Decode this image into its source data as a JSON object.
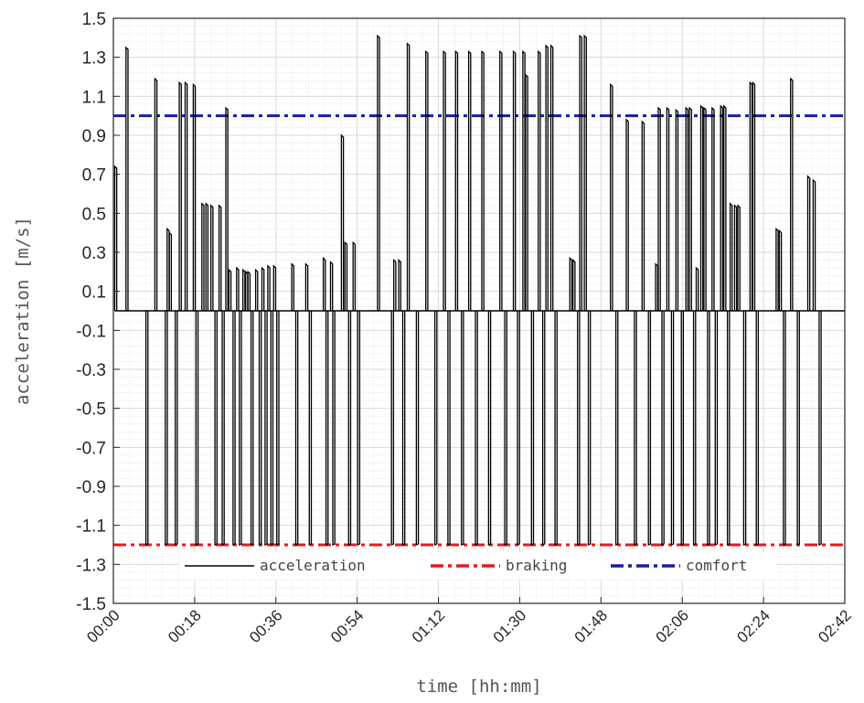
{
  "chart_data": {
    "type": "line",
    "xlabel": "time [hh:mm]",
    "ylabel": "acceleration [m/s]",
    "x_unit": "minutes",
    "xlim": [
      0,
      162
    ],
    "ylim": [
      -1.5,
      1.5
    ],
    "x_ticks": [
      0,
      18,
      36,
      54,
      72,
      90,
      108,
      126,
      144,
      162
    ],
    "x_tick_labels": [
      "00:00",
      "00:18",
      "00:36",
      "00:54",
      "01:12",
      "01:30",
      "01:48",
      "02:06",
      "02:24",
      "02:42"
    ],
    "y_ticks": [
      -1.5,
      -1.3,
      -1.1,
      -0.9,
      -0.7,
      -0.5,
      -0.3,
      -0.1,
      0.1,
      0.3,
      0.5,
      0.7,
      0.9,
      1.1,
      1.3,
      1.5
    ],
    "y_tick_labels": [
      "-1.5",
      "-1.3",
      "-1.1",
      "-0.9",
      "-0.7",
      "-0.5",
      "-0.3",
      "-0.1",
      "0.1",
      "0.3",
      "0.5",
      "0.7",
      "0.9",
      "1.1",
      "1.3",
      "1.5"
    ],
    "grid": true,
    "minor_grid": true,
    "legend_position": "bottom-center",
    "series": [
      {
        "name": "acceleration",
        "color": "#000000",
        "style": "solid",
        "baseline": 0,
        "events": [
          [
            0.3,
            0.74
          ],
          [
            2.8,
            1.35
          ],
          [
            7.2,
            -1.2
          ],
          [
            9.2,
            1.19
          ],
          [
            11.5,
            -1.2
          ],
          [
            11.9,
            0.42
          ],
          [
            12.4,
            0.4
          ],
          [
            13.7,
            -1.2
          ],
          [
            14.6,
            1.17
          ],
          [
            15.9,
            1.17
          ],
          [
            17.7,
            1.16
          ],
          [
            18.3,
            -1.2
          ],
          [
            19.6,
            0.55
          ],
          [
            20.5,
            0.55
          ],
          [
            21.6,
            0.54
          ],
          [
            22.5,
            -1.2
          ],
          [
            23.4,
            0.54
          ],
          [
            24.1,
            -1.2
          ],
          [
            24.9,
            1.04
          ],
          [
            25.6,
            0.21
          ],
          [
            26.5,
            -1.2
          ],
          [
            27.3,
            0.22
          ],
          [
            27.9,
            -1.2
          ],
          [
            28.7,
            0.21
          ],
          [
            29.3,
            0.2
          ],
          [
            29.8,
            0.2
          ],
          [
            30.5,
            -1.2
          ],
          [
            31.5,
            0.21
          ],
          [
            32.3,
            -1.2
          ],
          [
            32.9,
            0.22
          ],
          [
            33.6,
            -1.2
          ],
          [
            34.2,
            0.23
          ],
          [
            34.9,
            -1.2
          ],
          [
            35.5,
            0.23
          ],
          [
            36.2,
            -1.2
          ],
          [
            39.5,
            0.24
          ],
          [
            40.4,
            -1.2
          ],
          [
            42.6,
            0.24
          ],
          [
            43.4,
            -1.2
          ],
          [
            46.5,
            0.27
          ],
          [
            47.1,
            -1.2
          ],
          [
            48.1,
            0.25
          ],
          [
            48.6,
            -1.2
          ],
          [
            50.5,
            0.9
          ],
          [
            51.3,
            0.35
          ],
          [
            52.1,
            -1.2
          ],
          [
            53.1,
            0.35
          ],
          [
            54.1,
            -1.2
          ],
          [
            58.5,
            1.41
          ],
          [
            61.6,
            -1.2
          ],
          [
            62.1,
            0.26
          ],
          [
            63.2,
            0.26
          ],
          [
            64.1,
            -1.2
          ],
          [
            65.1,
            1.37
          ],
          [
            67.1,
            -1.2
          ],
          [
            69.2,
            1.33
          ],
          [
            71.2,
            -1.2
          ],
          [
            73.1,
            1.33
          ],
          [
            74.1,
            -1.2
          ],
          [
            75.8,
            1.33
          ],
          [
            77.1,
            -1.2
          ],
          [
            78.7,
            1.33
          ],
          [
            80.2,
            -1.2
          ],
          [
            81.6,
            1.33
          ],
          [
            83.1,
            -1.2
          ],
          [
            85.6,
            1.33
          ],
          [
            86.7,
            -1.2
          ],
          [
            88.6,
            1.33
          ],
          [
            89.5,
            -1.2
          ],
          [
            90.7,
            1.33
          ],
          [
            91.3,
            1.21
          ],
          [
            92.6,
            -1.2
          ],
          [
            94.1,
            1.33
          ],
          [
            95.1,
            -1.2
          ],
          [
            95.8,
            1.36
          ],
          [
            96.9,
            1.36
          ],
          [
            97.8,
            -1.2
          ],
          [
            101.1,
            0.27
          ],
          [
            101.8,
            0.26
          ],
          [
            102.8,
            -1.2
          ],
          [
            103.3,
            1.41
          ],
          [
            104.3,
            1.41
          ],
          [
            105.2,
            -1.2
          ],
          [
            110.1,
            1.16
          ],
          [
            111.3,
            -1.2
          ],
          [
            113.6,
            0.98
          ],
          [
            115.4,
            -1.2
          ],
          [
            117.1,
            0.97
          ],
          [
            118.5,
            -1.2
          ],
          [
            120.1,
            0.24
          ],
          [
            120.7,
            1.04
          ],
          [
            121.5,
            -1.2
          ],
          [
            122.6,
            1.04
          ],
          [
            123.6,
            -1.2
          ],
          [
            124.6,
            1.03
          ],
          [
            125.8,
            -1.2
          ],
          [
            126.8,
            1.04
          ],
          [
            127.6,
            1.04
          ],
          [
            128.5,
            -1.2
          ],
          [
            129.1,
            0.22
          ],
          [
            130.1,
            1.05
          ],
          [
            130.8,
            1.04
          ],
          [
            131.6,
            -1.2
          ],
          [
            132.6,
            1.04
          ],
          [
            133.3,
            -1.2
          ],
          [
            134.5,
            1.05
          ],
          [
            135.2,
            1.05
          ],
          [
            136.0,
            -1.2
          ],
          [
            136.6,
            0.55
          ],
          [
            137.6,
            0.54
          ],
          [
            138.3,
            0.54
          ],
          [
            139.6,
            -1.2
          ],
          [
            141.0,
            1.17
          ],
          [
            141.6,
            1.17
          ],
          [
            142.4,
            -1.2
          ],
          [
            146.8,
            0.42
          ],
          [
            147.5,
            0.41
          ],
          [
            148.4,
            -1.2
          ],
          [
            150.0,
            1.19
          ],
          [
            151.5,
            -1.2
          ],
          [
            153.8,
            0.69
          ],
          [
            155.0,
            0.67
          ],
          [
            156.3,
            -1.2
          ]
        ]
      },
      {
        "name": "braking",
        "color": "#e8191f",
        "style": "dash-dot",
        "y": -1.2
      },
      {
        "name": "comfort",
        "color": "#1a1aa6",
        "style": "dash-dot",
        "y": 1.0
      }
    ]
  }
}
